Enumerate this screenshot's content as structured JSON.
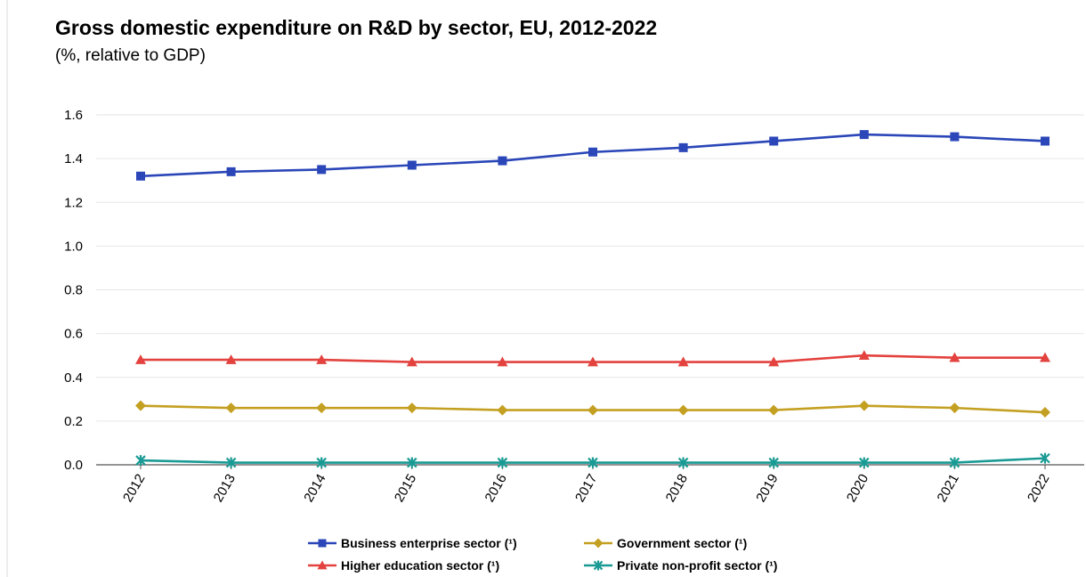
{
  "chart_data": {
    "type": "line",
    "title": "Gross domestic expenditure on R&D by sector, EU, 2012-2022",
    "subtitle": "(%, relative to GDP)",
    "x": [
      "2012",
      "2013",
      "2014",
      "2015",
      "2016",
      "2017",
      "2018",
      "2019",
      "2020",
      "2021",
      "2022"
    ],
    "ylim": [
      0,
      1.6
    ],
    "yticks": [
      "0.0",
      "0.2",
      "0.4",
      "0.6",
      "0.8",
      "1.0",
      "1.2",
      "1.4",
      "1.6"
    ],
    "grid": true,
    "legend_position": "bottom",
    "series": [
      {
        "name": "Business enterprise sector (¹)",
        "color": "#2a46b8",
        "marker": "square",
        "values": [
          1.32,
          1.34,
          1.35,
          1.37,
          1.39,
          1.43,
          1.45,
          1.48,
          1.51,
          1.5,
          1.48
        ]
      },
      {
        "name": "Government sector (¹)",
        "color": "#c4a022",
        "marker": "diamond",
        "values": [
          0.27,
          0.26,
          0.26,
          0.26,
          0.25,
          0.25,
          0.25,
          0.25,
          0.27,
          0.26,
          0.24
        ]
      },
      {
        "name": "Higher education sector (¹)",
        "color": "#e3423e",
        "marker": "triangle",
        "values": [
          0.48,
          0.48,
          0.48,
          0.47,
          0.47,
          0.47,
          0.47,
          0.47,
          0.5,
          0.49,
          0.49
        ]
      },
      {
        "name": "Private non-profit sector (¹)",
        "color": "#1a9a94",
        "marker": "star",
        "values": [
          0.02,
          0.01,
          0.01,
          0.01,
          0.01,
          0.01,
          0.01,
          0.01,
          0.01,
          0.01,
          0.03
        ]
      }
    ]
  }
}
